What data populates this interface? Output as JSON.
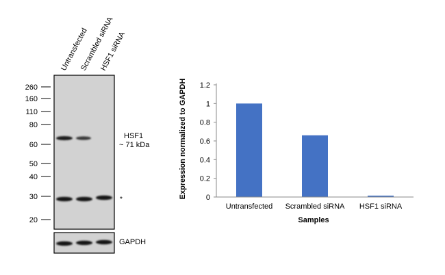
{
  "blot": {
    "lanes": [
      "Untransfected",
      "Scrambled siRNA",
      "HSF1 siRNA"
    ],
    "markers": [
      "260",
      "160",
      "110",
      "80",
      "60",
      "50",
      "40",
      "30",
      "20"
    ],
    "target_label": "HSF1",
    "target_size": "~ 71 kDa",
    "nonspecific_mark": "*",
    "loading_control": "GAPDH",
    "hsf1_band_intensity": [
      1.0,
      0.66,
      0.0
    ],
    "band_color": "#1e1e1e",
    "membrane_color": "#d2d2d2"
  },
  "chart_data": {
    "type": "bar",
    "categories": [
      "Untransfected",
      "Scrambled siRNA",
      "HSF1 siRNA"
    ],
    "values": [
      1.0,
      0.66,
      0.015
    ],
    "xlabel": "Samples",
    "ylabel": "Expression normalized to GAPDH",
    "ylim": [
      0,
      1.2
    ],
    "yticks": [
      "0",
      "0.2",
      "0.4",
      "0.6",
      "0.8",
      "1",
      "1.2"
    ],
    "grid": false,
    "bar_color": "#4472c4"
  }
}
